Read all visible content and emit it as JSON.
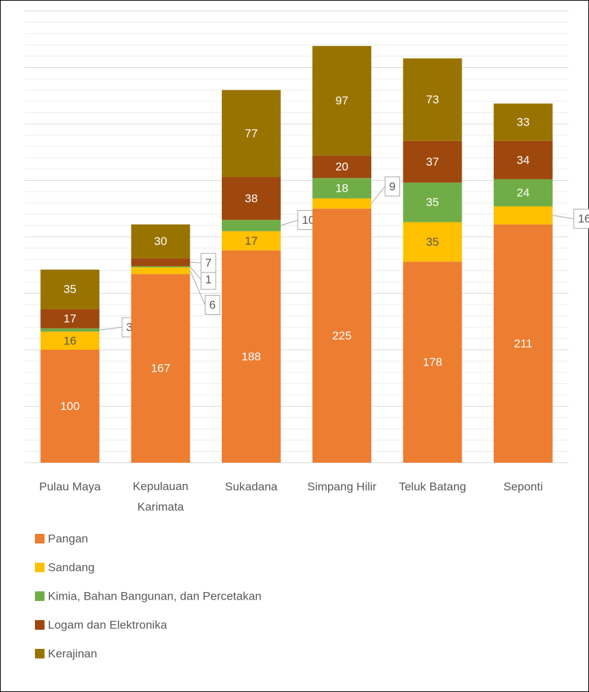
{
  "chart_data": {
    "type": "stacked_bar",
    "categories": [
      "Pulau Maya",
      "Kepulauan Karimata",
      "Sukadana",
      "Simpang Hilir",
      "Teluk Batang",
      "Seponti"
    ],
    "series": [
      {
        "name": "Pangan",
        "color": "#ED7D31",
        "values": [
          100,
          167,
          188,
          225,
          178,
          211
        ]
      },
      {
        "name": "Sandang",
        "color": "#FFC000",
        "values": [
          16,
          6,
          17,
          9,
          35,
          16
        ]
      },
      {
        "name": "Kimia, Bahan Bangunan, dan Percetakan",
        "color": "#70AD47",
        "values": [
          3,
          1,
          10,
          18,
          35,
          24
        ]
      },
      {
        "name": "Logam dan Elektronika",
        "color": "#9E480E",
        "values": [
          17,
          7,
          38,
          20,
          37,
          34
        ]
      },
      {
        "name": "Kerajinan",
        "color": "#997300",
        "values": [
          35,
          30,
          77,
          97,
          73,
          33
        ]
      }
    ],
    "ylim": [
      0,
      400
    ],
    "yticks": [
      0,
      50,
      100,
      150,
      200,
      250,
      300,
      350,
      400
    ],
    "grid": true,
    "legend": "bottom"
  }
}
